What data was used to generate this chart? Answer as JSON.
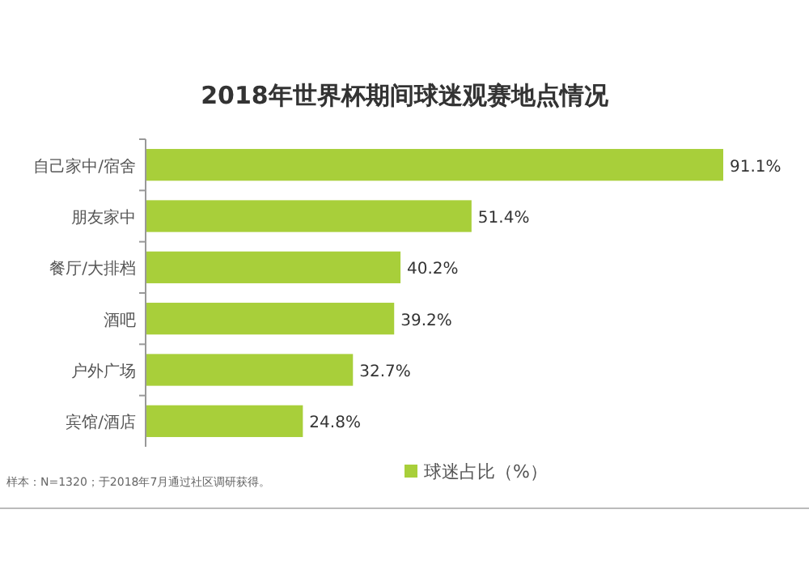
{
  "chart_data": {
    "type": "bar",
    "orientation": "horizontal",
    "title": "2018年世界杯期间球迷观赛地点情况",
    "categories": [
      "自己家中/宿舍",
      "朋友家中",
      "餐厅/大排档",
      "酒吧",
      "户外广场",
      "宾馆/酒店"
    ],
    "series": [
      {
        "name": "球迷占比（%）",
        "color": "#a8cf3a",
        "values": [
          91.1,
          51.4,
          40.2,
          39.2,
          32.7,
          24.8
        ],
        "value_labels": [
          "91.1%",
          "51.4%",
          "40.2%",
          "39.2%",
          "32.7%",
          "24.8%"
        ]
      }
    ],
    "legend": "bottom",
    "annotations": [
      "样本：N=1320；于2018年7月通过社区调研获得。"
    ]
  }
}
